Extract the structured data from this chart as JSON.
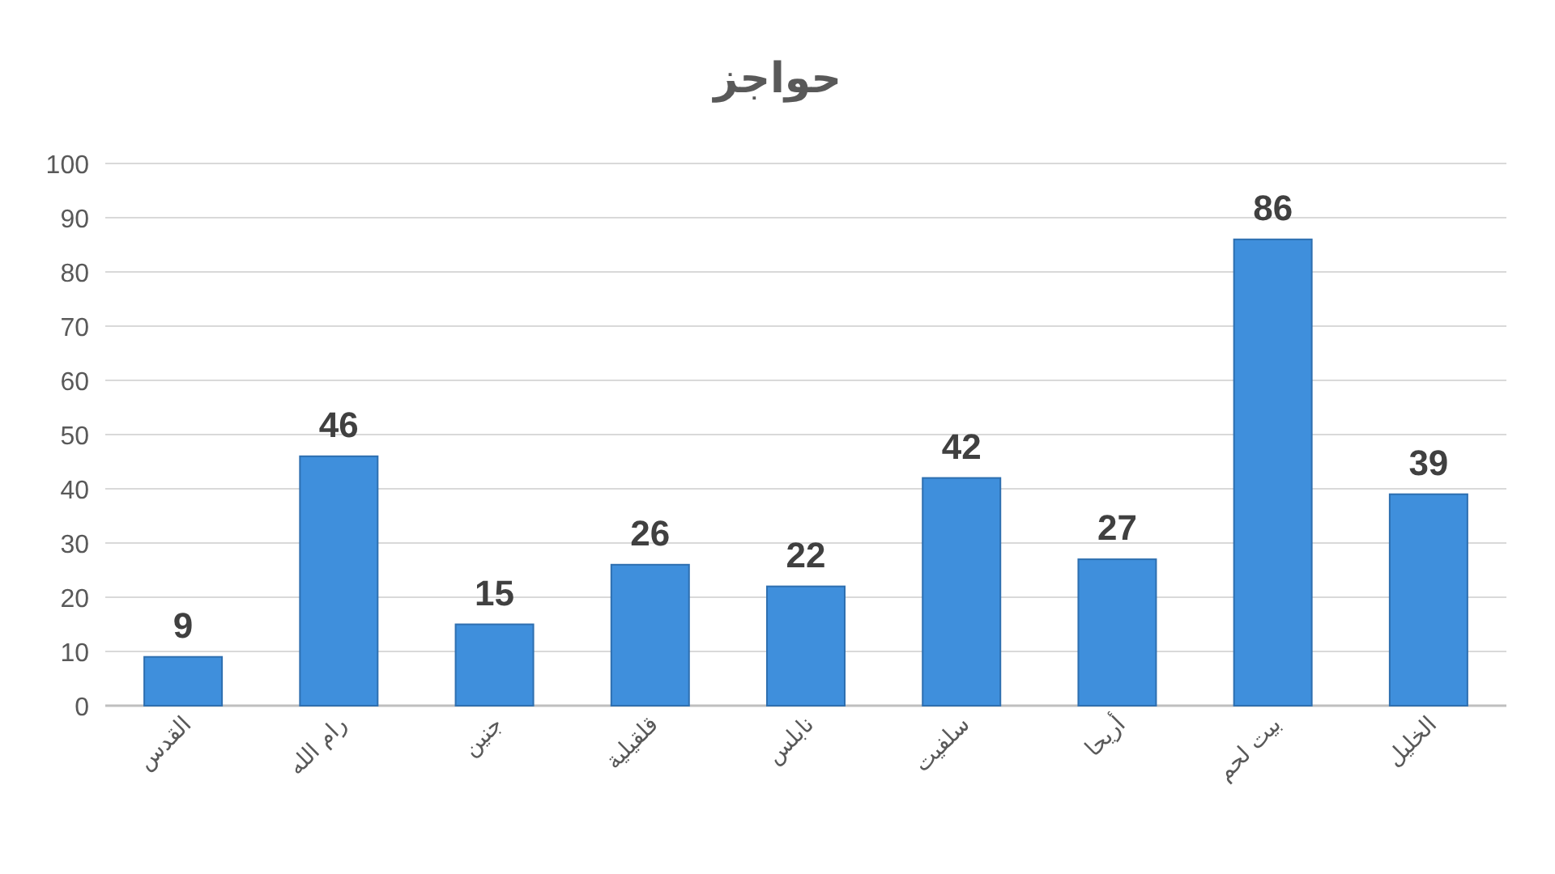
{
  "chart_data": {
    "type": "bar",
    "title": "حواجز",
    "categories": [
      "القدس",
      "رام الله",
      "جنين",
      "قلقيلية",
      "نابلس",
      "سلفيت",
      "أريحا",
      "بيت لحم",
      "الخليل"
    ],
    "values": [
      9,
      46,
      15,
      26,
      22,
      42,
      27,
      86,
      39
    ],
    "color": "#3f8fdc",
    "ylim": [
      0,
      100
    ],
    "yticks": [
      0,
      10,
      20,
      30,
      40,
      50,
      60,
      70,
      80,
      90,
      100
    ],
    "grid": "y",
    "data_labels": true
  }
}
